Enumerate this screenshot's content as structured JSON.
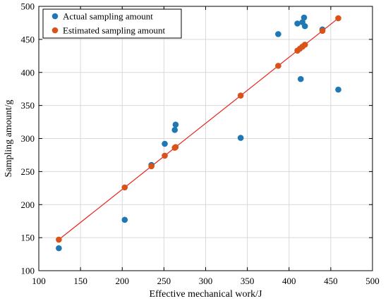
{
  "chart_data": {
    "type": "scatter",
    "xlabel": "Effective mechanical work/J",
    "ylabel": "Sampling amount/g",
    "xlim": [
      100,
      500
    ],
    "ylim": [
      100,
      500
    ],
    "xticks": [
      100,
      150,
      200,
      250,
      300,
      350,
      400,
      450,
      500
    ],
    "yticks": [
      100,
      150,
      200,
      250,
      300,
      350,
      400,
      450,
      500
    ],
    "grid": true,
    "legend": "top-left",
    "series": [
      {
        "name": "Actual sampling amount",
        "color": "#1f77b4",
        "kind": "points",
        "points": [
          [
            124,
            134
          ],
          [
            203,
            177
          ],
          [
            235,
            260
          ],
          [
            251,
            292
          ],
          [
            263,
            313
          ],
          [
            264,
            321
          ],
          [
            342,
            301
          ],
          [
            387,
            458
          ],
          [
            410,
            474
          ],
          [
            414,
            390
          ],
          [
            416,
            476
          ],
          [
            418,
            483
          ],
          [
            419,
            470
          ],
          [
            440,
            465
          ],
          [
            459,
            374
          ]
        ]
      },
      {
        "name": "Estimated sampling amount",
        "color": "#d95319",
        "kind": "points-with-line",
        "line_color": "#e8261f",
        "points": [
          [
            124,
            147
          ],
          [
            203,
            226
          ],
          [
            235,
            258
          ],
          [
            251,
            274
          ],
          [
            263,
            286
          ],
          [
            264,
            287
          ],
          [
            342,
            365
          ],
          [
            387,
            410
          ],
          [
            410,
            433
          ],
          [
            413,
            436
          ],
          [
            416,
            439
          ],
          [
            419,
            442
          ],
          [
            440,
            463
          ],
          [
            459,
            482
          ]
        ]
      }
    ]
  }
}
